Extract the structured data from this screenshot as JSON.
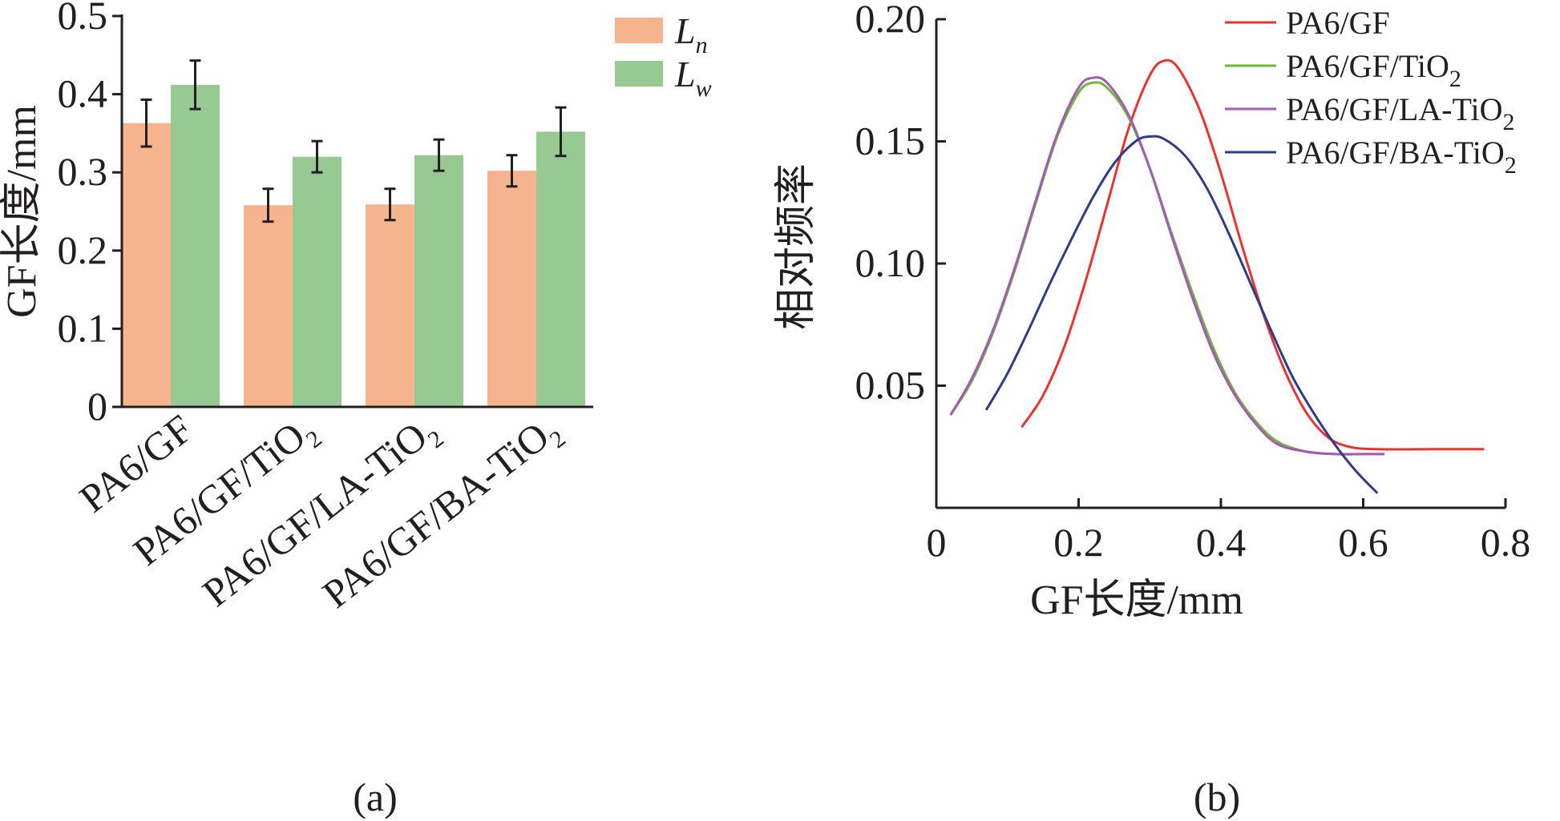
{
  "chart_data": [
    {
      "panel_label": "(a)",
      "type": "bar",
      "ylabel": "GF长度/mm",
      "ylim": [
        0,
        0.5
      ],
      "yticks": [
        "0",
        "0.1",
        "0.2",
        "0.3",
        "0.4",
        "0.5"
      ],
      "categories": [
        {
          "base": "PA6/GF",
          "sub": ""
        },
        {
          "base": "PA6/GF/TiO",
          "sub": "2"
        },
        {
          "base": "PA6/GF/LA-TiO",
          "sub": "2"
        },
        {
          "base": "PA6/GF/BA-TiO",
          "sub": "2"
        }
      ],
      "legend_position": "top-right",
      "series": [
        {
          "name": "L",
          "name_sub": "n",
          "color": "#f5b48e",
          "values": [
            0.363,
            0.258,
            0.259,
            0.302
          ],
          "errors": [
            0.03,
            0.021,
            0.02,
            0.02
          ]
        },
        {
          "name": "L",
          "name_sub": "w",
          "color": "#97c993",
          "values": [
            0.412,
            0.32,
            0.322,
            0.352
          ],
          "errors": [
            0.031,
            0.02,
            0.02,
            0.031
          ]
        }
      ]
    },
    {
      "panel_label": "(b)",
      "type": "line",
      "xlabel": "GF长度/mm",
      "ylabel": "相对频率",
      "xlim": [
        0,
        0.8
      ],
      "ylim": [
        0,
        0.2
      ],
      "xticks": [
        "0",
        "0.2",
        "0.4",
        "0.6",
        "0.8"
      ],
      "yticks": [
        "0.05",
        "0.10",
        "0.15",
        "0.20"
      ],
      "legend_position": "top-right",
      "series": [
        {
          "name": "PA6/GF",
          "name_sub": "",
          "color": "#e8332e",
          "x": [
            0.12,
            0.15,
            0.18,
            0.21,
            0.24,
            0.27,
            0.3,
            0.32,
            0.34,
            0.37,
            0.4,
            0.43,
            0.46,
            0.49,
            0.52,
            0.55,
            0.58,
            0.62,
            0.7,
            0.77
          ],
          "y": [
            0.033,
            0.046,
            0.066,
            0.093,
            0.124,
            0.155,
            0.177,
            0.183,
            0.18,
            0.163,
            0.137,
            0.107,
            0.079,
            0.056,
            0.039,
            0.029,
            0.025,
            0.024,
            0.024,
            0.024
          ]
        },
        {
          "name": "PA6/GF/TiO",
          "name_sub": "2",
          "color": "#6cb83a",
          "x": [
            0.02,
            0.05,
            0.08,
            0.11,
            0.14,
            0.17,
            0.2,
            0.22,
            0.24,
            0.27,
            0.3,
            0.33,
            0.36,
            0.39,
            0.42,
            0.45,
            0.48,
            0.52,
            0.56,
            0.6,
            0.63
          ],
          "y": [
            0.038,
            0.052,
            0.072,
            0.097,
            0.125,
            0.152,
            0.17,
            0.174,
            0.172,
            0.16,
            0.139,
            0.113,
            0.088,
            0.065,
            0.047,
            0.035,
            0.027,
            0.023,
            0.022,
            0.022,
            0.022
          ]
        },
        {
          "name": "PA6/GF/LA-TiO",
          "name_sub": "2",
          "color": "#a45bb4",
          "x": [
            0.02,
            0.05,
            0.08,
            0.11,
            0.14,
            0.17,
            0.2,
            0.22,
            0.24,
            0.27,
            0.3,
            0.33,
            0.36,
            0.39,
            0.42,
            0.45,
            0.48,
            0.52,
            0.56,
            0.6,
            0.63
          ],
          "y": [
            0.038,
            0.053,
            0.073,
            0.098,
            0.126,
            0.153,
            0.172,
            0.176,
            0.174,
            0.161,
            0.139,
            0.112,
            0.086,
            0.063,
            0.046,
            0.034,
            0.026,
            0.023,
            0.022,
            0.022,
            0.022
          ]
        },
        {
          "name": "PA6/GF/BA-TiO",
          "name_sub": "2",
          "color": "#2e3b87",
          "x": [
            0.07,
            0.1,
            0.13,
            0.16,
            0.19,
            0.22,
            0.25,
            0.28,
            0.3,
            0.32,
            0.35,
            0.38,
            0.41,
            0.44,
            0.47,
            0.5,
            0.53,
            0.56,
            0.59,
            0.62
          ],
          "y": [
            0.04,
            0.055,
            0.073,
            0.092,
            0.11,
            0.127,
            0.141,
            0.15,
            0.152,
            0.151,
            0.144,
            0.131,
            0.113,
            0.093,
            0.073,
            0.054,
            0.039,
            0.026,
            0.015,
            0.006
          ]
        }
      ]
    }
  ]
}
